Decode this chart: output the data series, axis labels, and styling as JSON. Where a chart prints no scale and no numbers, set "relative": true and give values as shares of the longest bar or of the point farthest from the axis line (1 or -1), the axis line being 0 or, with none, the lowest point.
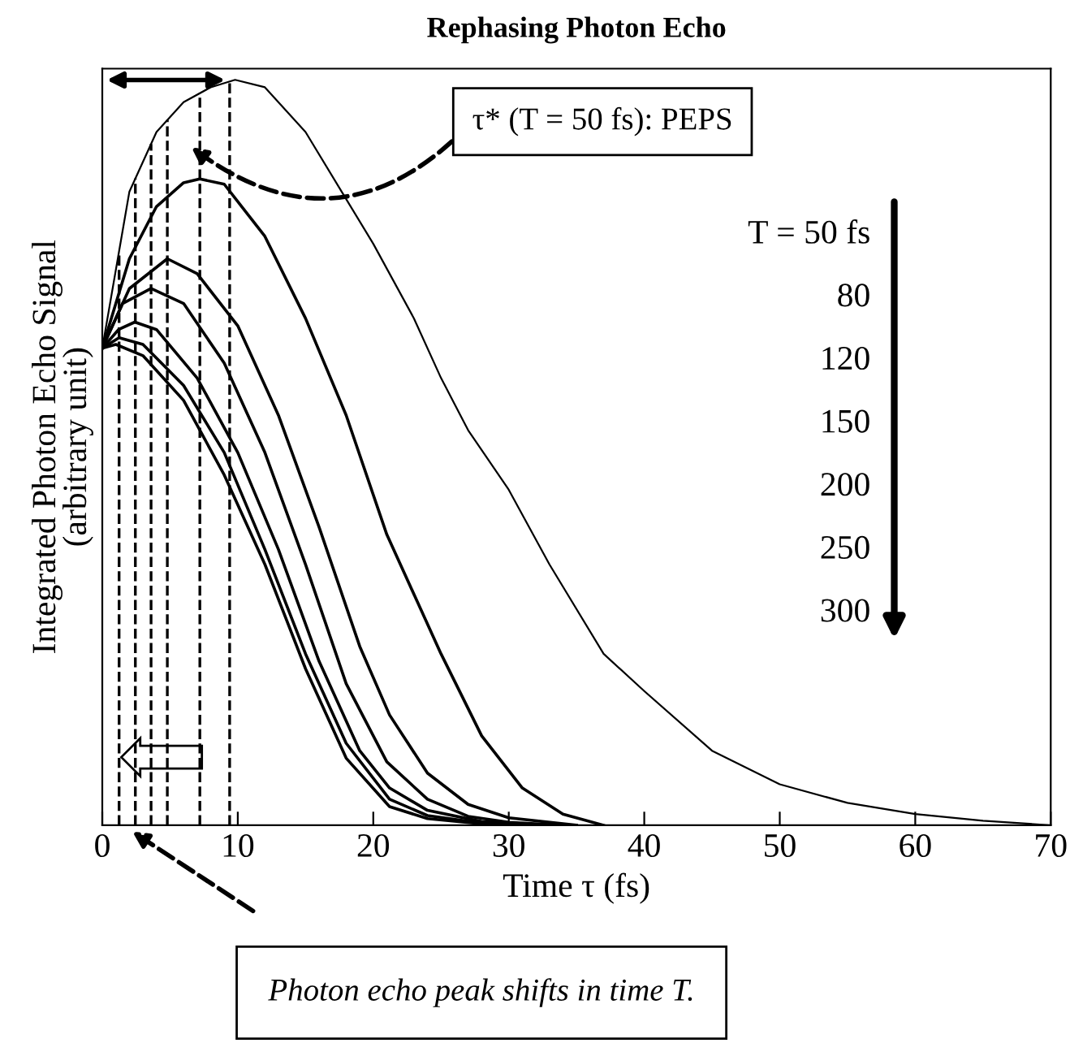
{
  "chart_data": {
    "type": "line",
    "title": "Rephasing Photon Echo",
    "xlabel": "Time τ (fs)",
    "ylabel": "Integrated Photon Echo Signal\n(arbitrary unit)",
    "relative": true,
    "xlim": [
      0,
      70
    ],
    "xticks": [
      0,
      10,
      20,
      30,
      40,
      50,
      60,
      70
    ],
    "grid": false,
    "legend": false,
    "marker": "none",
    "line_style": "solid",
    "series": [
      {
        "color": "#000000",
        "x": [
          0,
          2,
          4,
          6,
          8,
          9.8,
          12,
          15,
          18,
          20,
          23,
          25,
          27,
          30,
          33,
          37,
          40,
          45,
          50,
          55,
          60,
          65,
          70
        ],
        "values": [
          0.64,
          0.85,
          0.93,
          0.97,
          0.99,
          1.0,
          0.99,
          0.93,
          0.84,
          0.78,
          0.68,
          0.6,
          0.53,
          0.45,
          0.35,
          0.23,
          0.18,
          0.1,
          0.055,
          0.03,
          0.015,
          0.006,
          0
        ]
      },
      {
        "color": "#000000",
        "x": [
          0,
          2,
          4,
          6,
          7.2,
          9,
          12,
          15,
          18,
          21,
          25,
          28,
          31,
          34,
          37
        ],
        "values": [
          0.64,
          0.76,
          0.83,
          0.862,
          0.867,
          0.86,
          0.79,
          0.68,
          0.55,
          0.39,
          0.23,
          0.12,
          0.05,
          0.015,
          0
        ]
      },
      {
        "color": "#000000",
        "x": [
          0,
          2,
          4.8,
          7,
          10,
          13,
          16,
          19,
          21.2,
          24,
          27,
          30,
          35
        ],
        "values": [
          0.64,
          0.72,
          0.76,
          0.74,
          0.67,
          0.55,
          0.4,
          0.24,
          0.148,
          0.07,
          0.028,
          0.01,
          0
        ]
      },
      {
        "color": "#000000",
        "x": [
          0,
          1.5,
          3.6,
          6,
          9,
          12,
          15,
          18,
          21,
          24,
          27,
          30,
          34
        ],
        "values": [
          0.64,
          0.7,
          0.72,
          0.7,
          0.62,
          0.5,
          0.35,
          0.19,
          0.085,
          0.035,
          0.012,
          0.004,
          0
        ]
      },
      {
        "color": "#000000",
        "x": [
          0,
          1.2,
          2.4,
          4,
          7,
          10,
          13,
          16,
          19,
          21.2,
          24,
          28,
          33
        ],
        "values": [
          0.64,
          0.665,
          0.675,
          0.665,
          0.6,
          0.5,
          0.37,
          0.22,
          0.1,
          0.05,
          0.02,
          0.005,
          0
        ]
      },
      {
        "color": "#000000",
        "x": [
          0,
          1.24,
          3,
          6,
          9,
          12,
          15,
          18,
          21.2,
          24,
          28,
          32
        ],
        "values": [
          0.64,
          0.654,
          0.645,
          0.59,
          0.5,
          0.37,
          0.23,
          0.11,
          0.035,
          0.013,
          0.003,
          0
        ]
      },
      {
        "color": "#000000",
        "x": [
          0,
          1.0,
          3,
          6,
          9,
          12,
          15,
          18,
          21.2,
          24,
          28,
          31
        ],
        "values": [
          0.64,
          0.645,
          0.63,
          0.57,
          0.47,
          0.35,
          0.21,
          0.09,
          0.025,
          0.009,
          0.002,
          0
        ]
      }
    ],
    "ref_lines": [
      {
        "axis": "x",
        "value": 1.24,
        "line_style": "dashed",
        "color": "#000000"
      },
      {
        "axis": "x",
        "value": 2.44,
        "line_style": "dashed",
        "color": "#000000"
      },
      {
        "axis": "x",
        "value": 3.6,
        "line_style": "dashed",
        "color": "#000000"
      },
      {
        "axis": "x",
        "value": 4.8,
        "line_style": "dashed",
        "color": "#000000"
      },
      {
        "axis": "x",
        "value": 7.2,
        "line_style": "dashed",
        "color": "#000000"
      },
      {
        "axis": "x",
        "value": 9.4,
        "line_style": "dashed",
        "color": "#000000"
      }
    ],
    "annotations": [
      "τ* (T = 50 fs): PEPS",
      "T = 50 fs",
      "80",
      "120",
      "150",
      "200",
      "250",
      "300",
      "Photon echo peak shifts in time T."
    ]
  }
}
